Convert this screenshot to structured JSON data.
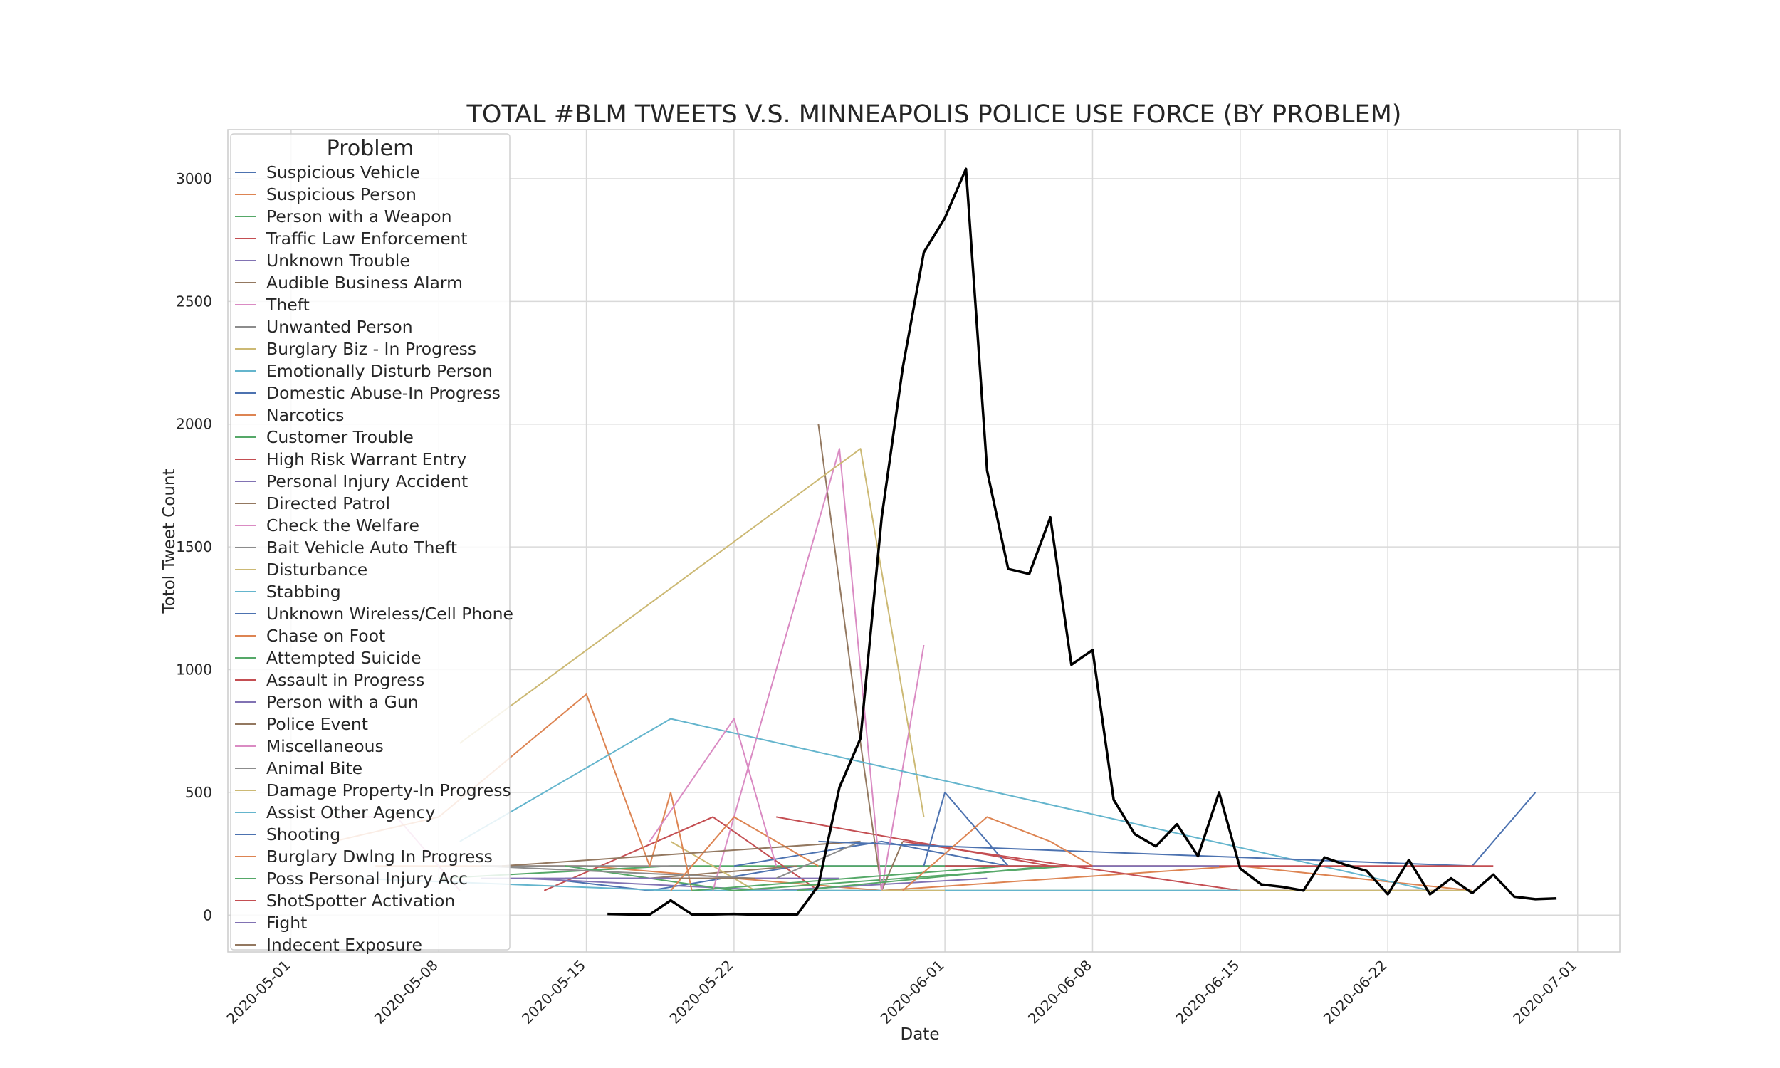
{
  "chart_data": {
    "type": "line",
    "title": "TOTAL #BLM TWEETS V.S. MINNEAPOLIS POLICE USE FORCE (BY PROBLEM)",
    "xlabel": "Date",
    "ylabel": "Totol Tweet Count",
    "xlim": [
      "2020-04-28",
      "2020-07-03"
    ],
    "ylim": [
      -150,
      3200
    ],
    "x_ticks": [
      "2020-05-01",
      "2020-05-08",
      "2020-05-15",
      "2020-05-22",
      "2020-06-01",
      "2020-06-08",
      "2020-06-15",
      "2020-06-22",
      "2020-07-01"
    ],
    "y_ticks": [
      0,
      500,
      1000,
      1500,
      2000,
      2500,
      3000
    ],
    "grid": true,
    "legend": {
      "title": "Problem",
      "placement": "top-left"
    },
    "total_series": {
      "color": "#000000",
      "points": [
        [
          "2020-05-16",
          5
        ],
        [
          "2020-05-17",
          3
        ],
        [
          "2020-05-18",
          2
        ],
        [
          "2020-05-19",
          60
        ],
        [
          "2020-05-20",
          3
        ],
        [
          "2020-05-21",
          3
        ],
        [
          "2020-05-22",
          5
        ],
        [
          "2020-05-23",
          2
        ],
        [
          "2020-05-24",
          3
        ],
        [
          "2020-05-25",
          3
        ],
        [
          "2020-05-26",
          120
        ],
        [
          "2020-05-27",
          520
        ],
        [
          "2020-05-28",
          720
        ],
        [
          "2020-05-29",
          1620
        ],
        [
          "2020-05-30",
          2230
        ],
        [
          "2020-05-31",
          2700
        ],
        [
          "2020-06-01",
          2840
        ],
        [
          "2020-06-02",
          3040
        ],
        [
          "2020-06-03",
          1810
        ],
        [
          "2020-06-04",
          1410
        ],
        [
          "2020-06-05",
          1390
        ],
        [
          "2020-06-06",
          1620
        ],
        [
          "2020-06-07",
          1020
        ],
        [
          "2020-06-08",
          1080
        ],
        [
          "2020-06-09",
          470
        ],
        [
          "2020-06-10",
          330
        ],
        [
          "2020-06-11",
          280
        ],
        [
          "2020-06-12",
          370
        ],
        [
          "2020-06-13",
          240
        ],
        [
          "2020-06-14",
          500
        ],
        [
          "2020-06-15",
          190
        ],
        [
          "2020-06-16",
          125
        ],
        [
          "2020-06-17",
          115
        ],
        [
          "2020-06-18",
          100
        ],
        [
          "2020-06-19",
          235
        ],
        [
          "2020-06-20",
          205
        ],
        [
          "2020-06-21",
          180
        ],
        [
          "2020-06-22",
          85
        ],
        [
          "2020-06-23",
          225
        ],
        [
          "2020-06-24",
          85
        ],
        [
          "2020-06-25",
          150
        ],
        [
          "2020-06-26",
          90
        ],
        [
          "2020-06-27",
          165
        ],
        [
          "2020-06-28",
          75
        ],
        [
          "2020-06-29",
          65
        ],
        [
          "2020-06-30",
          68
        ]
      ]
    },
    "series": [
      {
        "name": "Suspicious Vehicle",
        "color": "#4C72B0",
        "points": [
          [
            "2020-05-13",
            150
          ],
          [
            "2020-05-18",
            100
          ],
          [
            "2020-05-25",
            200
          ],
          [
            "2020-06-05",
            200
          ]
        ]
      },
      {
        "name": "Suspicious Person",
        "color": "#DD8452",
        "points": [
          [
            "2020-05-05",
            200
          ],
          [
            "2020-05-15",
            200
          ],
          [
            "2020-05-29",
            100
          ],
          [
            "2020-06-15",
            200
          ],
          [
            "2020-06-26",
            100
          ]
        ]
      },
      {
        "name": "Person with a Weapon",
        "color": "#55A868",
        "points": [
          [
            "2020-05-08",
            150
          ],
          [
            "2020-05-19",
            200
          ],
          [
            "2020-06-07",
            200
          ]
        ]
      },
      {
        "name": "Traffic Law Enforcement",
        "color": "#C44E52",
        "points": [
          [
            "2020-05-13",
            100
          ],
          [
            "2020-05-21",
            400
          ],
          [
            "2020-05-26",
            100
          ]
        ]
      },
      {
        "name": "Unknown Trouble",
        "color": "#8172B3",
        "points": [
          [
            "2020-05-12",
            150
          ],
          [
            "2020-05-24",
            100
          ],
          [
            "2020-06-03",
            150
          ]
        ]
      },
      {
        "name": "Audible Business Alarm",
        "color": "#937860",
        "points": [
          [
            "2020-05-18",
            150
          ],
          [
            "2020-05-25",
            200
          ]
        ]
      },
      {
        "name": "Theft",
        "color": "#DA8BC3",
        "points": [
          [
            "2020-05-02",
            400
          ],
          [
            "2020-05-06",
            400
          ],
          [
            "2020-05-09",
            100
          ]
        ]
      },
      {
        "name": "Unwanted Person",
        "color": "#8C8C8C",
        "points": [
          [
            "2020-05-10",
            200
          ],
          [
            "2020-05-20",
            200
          ]
        ]
      },
      {
        "name": "Burglary Biz - In Progress",
        "color": "#CCB974",
        "points": [
          [
            "2020-05-19",
            300
          ],
          [
            "2020-05-23",
            100
          ],
          [
            "2020-05-28",
            100
          ]
        ]
      },
      {
        "name": "Emotionally Disturb Person",
        "color": "#64B5CD",
        "points": [
          [
            "2020-05-04",
            150
          ],
          [
            "2020-05-19",
            100
          ],
          [
            "2020-06-24",
            100
          ]
        ]
      },
      {
        "name": "Domestic Abuse-In Progress",
        "color": "#4C72B0",
        "points": [
          [
            "2020-05-22",
            200
          ],
          [
            "2020-05-29",
            300
          ],
          [
            "2020-06-04",
            200
          ]
        ]
      },
      {
        "name": "Narcotics",
        "color": "#DD8452",
        "points": [
          [
            "2020-05-03",
            300
          ],
          [
            "2020-05-08",
            400
          ],
          [
            "2020-05-15",
            900
          ],
          [
            "2020-05-18",
            200
          ],
          [
            "2020-05-19",
            500
          ],
          [
            "2020-05-20",
            100
          ]
        ]
      },
      {
        "name": "Customer Trouble",
        "color": "#55A868",
        "points": [
          [
            "2020-05-14",
            200
          ],
          [
            "2020-05-22",
            100
          ],
          [
            "2020-06-07",
            200
          ]
        ]
      },
      {
        "name": "High Risk Warrant Entry",
        "color": "#C44E52",
        "points": [
          [
            "2020-05-24",
            400
          ],
          [
            "2020-06-06",
            200
          ]
        ]
      },
      {
        "name": "Personal Injury Accident",
        "color": "#8172B3",
        "points": [
          [
            "2020-05-10",
            150
          ],
          [
            "2020-05-24",
            150
          ]
        ]
      },
      {
        "name": "Directed Patrol",
        "color": "#937860",
        "points": [
          [
            "2020-05-26",
            2000
          ],
          [
            "2020-05-28",
            700
          ],
          [
            "2020-05-29",
            100
          ],
          [
            "2020-05-30",
            300
          ]
        ]
      },
      {
        "name": "Check the Welfare",
        "color": "#DA8BC3",
        "points": [
          [
            "2020-05-21",
            100
          ],
          [
            "2020-05-27",
            1900
          ],
          [
            "2020-05-29",
            100
          ],
          [
            "2020-05-31",
            1100
          ]
        ]
      },
      {
        "name": "Bait Vehicle Auto Theft",
        "color": "#8C8C8C",
        "points": [
          [
            "2020-05-10",
            200
          ],
          [
            "2020-05-23",
            150
          ]
        ]
      },
      {
        "name": "Disturbance",
        "color": "#CCB974",
        "points": [
          [
            "2020-05-09",
            700
          ],
          [
            "2020-05-28",
            1900
          ],
          [
            "2020-05-31",
            400
          ]
        ]
      },
      {
        "name": "Stabbing",
        "color": "#64B5CD",
        "points": [
          [
            "2020-05-09",
            300
          ],
          [
            "2020-05-19",
            800
          ],
          [
            "2020-06-24",
            100
          ]
        ]
      },
      {
        "name": "Unknown Wireless/Cell Phone",
        "color": "#4C72B0",
        "points": [
          [
            "2020-05-31",
            200
          ],
          [
            "2020-06-01",
            500
          ],
          [
            "2020-06-04",
            200
          ]
        ]
      },
      {
        "name": "Chase on Foot",
        "color": "#DD8452",
        "points": [
          [
            "2020-05-19",
            100
          ],
          [
            "2020-05-22",
            400
          ],
          [
            "2020-05-26",
            200
          ]
        ]
      },
      {
        "name": "Attempted Suicide",
        "color": "#55A868",
        "points": [
          [
            "2020-05-20",
            100
          ],
          [
            "2020-06-04",
            200
          ]
        ]
      },
      {
        "name": "Assault in Progress",
        "color": "#C44E52",
        "points": [
          [
            "2020-05-30",
            300
          ],
          [
            "2020-06-15",
            100
          ],
          [
            "2020-06-26",
            100
          ]
        ]
      },
      {
        "name": "Person with a Gun",
        "color": "#8172B3",
        "points": [
          [
            "2020-05-14",
            150
          ],
          [
            "2020-05-27",
            150
          ]
        ]
      },
      {
        "name": "Police Event",
        "color": "#937860",
        "points": [
          [
            "2020-05-11",
            200
          ],
          [
            "2020-05-28",
            300
          ]
        ]
      },
      {
        "name": "Miscellaneous",
        "color": "#DA8BC3",
        "points": [
          [
            "2020-05-18",
            300
          ],
          [
            "2020-05-22",
            800
          ],
          [
            "2020-05-24",
            200
          ]
        ]
      },
      {
        "name": "Animal Bite",
        "color": "#8C8C8C",
        "points": [
          [
            "2020-05-24",
            150
          ],
          [
            "2020-05-28",
            300
          ]
        ]
      },
      {
        "name": "Damage Property-In Progress",
        "color": "#CCB974",
        "points": [
          [
            "2020-05-29",
            100
          ],
          [
            "2020-06-04",
            100
          ],
          [
            "2020-06-26",
            100
          ]
        ]
      },
      {
        "name": "Assist Other Agency",
        "color": "#64B5CD",
        "points": [
          [
            "2020-06-01",
            100
          ],
          [
            "2020-06-15",
            100
          ]
        ]
      },
      {
        "name": "Shooting",
        "color": "#4C72B0",
        "points": [
          [
            "2020-05-26",
            300
          ],
          [
            "2020-06-26",
            200
          ],
          [
            "2020-06-29",
            500
          ]
        ]
      },
      {
        "name": "Burglary Dwlng In Progress",
        "color": "#DD8452",
        "points": [
          [
            "2020-05-30",
            100
          ],
          [
            "2020-06-03",
            400
          ],
          [
            "2020-06-06",
            300
          ],
          [
            "2020-06-08",
            200
          ]
        ]
      },
      {
        "name": "Poss Personal Injury Acc",
        "color": "#55A868",
        "points": [
          [
            "2020-05-25",
            100
          ],
          [
            "2020-06-06",
            200
          ]
        ]
      },
      {
        "name": "ShotSpotter Activation",
        "color": "#C44E52",
        "points": [
          [
            "2020-06-01",
            200
          ],
          [
            "2020-06-27",
            200
          ]
        ]
      },
      {
        "name": "Fight",
        "color": "#8172B3",
        "points": [
          [
            "2020-06-08",
            200
          ],
          [
            "2020-06-14",
            200
          ]
        ]
      },
      {
        "name": "Indecent Exposure",
        "color": "#937860",
        "points": [
          [
            "2020-05-19",
            150
          ],
          [
            "2020-05-23",
            150
          ]
        ]
      }
    ]
  }
}
